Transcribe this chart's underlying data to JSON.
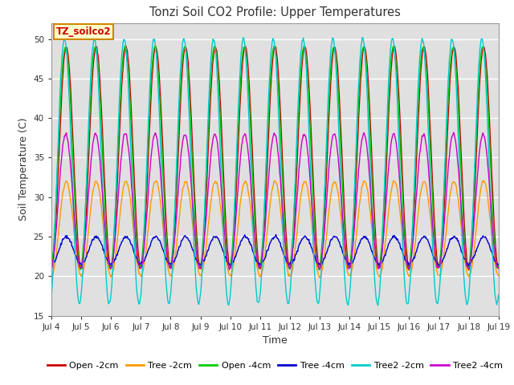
{
  "title": "Tonzi Soil CO2 Profile: Upper Temperatures",
  "ylabel": "Soil Temperature (C)",
  "xlabel": "Time",
  "ylim": [
    15,
    52
  ],
  "yticks": [
    15,
    20,
    25,
    30,
    35,
    40,
    45,
    50
  ],
  "background_color": "#ffffff",
  "plot_bg_color": "#e0e0e0",
  "grid_color": "#ffffff",
  "annotation_text": "TZ_soilco2",
  "annotation_bg": "#ffffcc",
  "annotation_border": "#cc8800",
  "series": [
    {
      "label": "Open -2cm",
      "color": "#cc0000",
      "peak": 49.0,
      "trough": 21.0,
      "phase": 0.0
    },
    {
      "label": "Tree -2cm",
      "color": "#ff9900",
      "peak": 32.0,
      "trough": 20.0,
      "phase": 0.0
    },
    {
      "label": "Open -4cm",
      "color": "#00cc00",
      "peak": 49.0,
      "trough": 21.0,
      "phase": 0.03
    },
    {
      "label": "Tree -4cm",
      "color": "#0000cc",
      "peak": 25.0,
      "trough": 21.5,
      "phase": 0.0
    },
    {
      "label": "Tree2 -2cm",
      "color": "#00cccc",
      "peak": 50.0,
      "trough": 16.5,
      "phase": 0.06
    },
    {
      "label": "Tree2 -4cm",
      "color": "#cc00cc",
      "peak": 38.0,
      "trough": 21.0,
      "phase": 0.02
    }
  ],
  "n_days": 15,
  "start_day": 4,
  "points_per_day": 48,
  "figsize": [
    6.4,
    4.8
  ],
  "dpi": 100
}
